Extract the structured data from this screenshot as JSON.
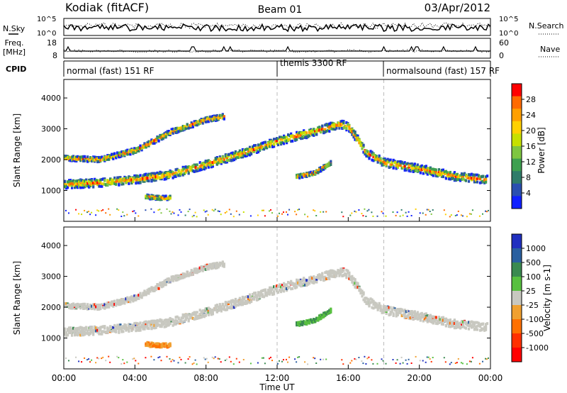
{
  "header": {
    "station": "Kodiak (fitACF)",
    "beam": "Beam 01",
    "date": "03/Apr/2012"
  },
  "left_labels": {
    "nsky": "N.Sky",
    "freq_line1": "Freq.",
    "freq_line2": "[MHz]",
    "cpid": "CPID"
  },
  "right_labels": {
    "nsearch": "N.Search",
    "nave": "Nave"
  },
  "top_panel_ticks": {
    "noise_left": [
      "10^5",
      "10^0"
    ],
    "noise_right": [
      "10^5",
      "10^0"
    ],
    "freq_left": [
      "18",
      "8"
    ],
    "nave_right": [
      "60",
      "0"
    ]
  },
  "cpid_segments": [
    {
      "label": "normal (fast) 151 RF",
      "start_h": 0
    },
    {
      "label": "themis 3300 RF",
      "start_h": 12
    },
    {
      "label": "normalsound (fast) 157 RF",
      "start_h": 18
    }
  ],
  "chart_data": [
    {
      "type": "heatmap",
      "title": "Power",
      "ylabel": "Slant Range [km]",
      "ylim": [
        0,
        4600
      ],
      "yticks": [
        1000,
        2000,
        3000,
        4000
      ],
      "xlim": [
        "00:00",
        "24:00"
      ],
      "colorbar_label": "Power [dB]",
      "colorbar_ticks": [
        28,
        24,
        20,
        16,
        12,
        8,
        4
      ],
      "colorbar_colors": [
        "#ff0000",
        "#ff6a00",
        "#ff9f00",
        "#ffd000",
        "#c6e000",
        "#7ec640",
        "#3ea050",
        "#2f7c6a",
        "#2a4fb0",
        "#1020ff"
      ],
      "echo_bands": [
        {
          "name": "main",
          "points": [
            [
              0.0,
              1200
            ],
            [
              2.0,
              1250
            ],
            [
              4.0,
              1350
            ],
            [
              6.0,
              1520
            ],
            [
              8.0,
              1850
            ],
            [
              10.0,
              2200
            ],
            [
              12.0,
              2600
            ],
            [
              14.0,
              2900
            ],
            [
              15.5,
              3150
            ],
            [
              16.0,
              3050
            ],
            [
              17.0,
              2200
            ],
            [
              18.0,
              1900
            ],
            [
              20.0,
              1700
            ],
            [
              22.0,
              1450
            ],
            [
              23.8,
              1350
            ]
          ]
        },
        {
          "name": "upper",
          "points": [
            [
              0.0,
              2050
            ],
            [
              2.0,
              2000
            ],
            [
              4.0,
              2300
            ],
            [
              6.0,
              2900
            ],
            [
              8.0,
              3300
            ],
            [
              9.0,
              3400
            ]
          ]
        },
        {
          "name": "blob_13_15",
          "points": [
            [
              13.0,
              1450
            ],
            [
              14.0,
              1550
            ],
            [
              15.0,
              1900
            ]
          ]
        },
        {
          "name": "blob_05_06",
          "points": [
            [
              4.5,
              800
            ],
            [
              5.5,
              750
            ],
            [
              6.0,
              780
            ]
          ]
        }
      ]
    },
    {
      "type": "heatmap",
      "title": "Velocity",
      "ylabel": "Slant Range [km]",
      "xlabel": "Time UT",
      "ylim": [
        0,
        4600
      ],
      "yticks": [
        1000,
        2000,
        3000,
        4000
      ],
      "xticks": [
        "00:00",
        "04:00",
        "08:00",
        "12:00",
        "16:00",
        "20:00",
        "00:00"
      ],
      "colorbar_label": "Velocity [m s-1]",
      "colorbar_ticks": [
        1000,
        500,
        100,
        25,
        -25,
        -100,
        -500,
        -1000
      ],
      "colorbar_colors": [
        "#2030c0",
        "#2a60a0",
        "#3a8a50",
        "#58c040",
        "#c8c8c0",
        "#f0a030",
        "#ff7000",
        "#ff3000",
        "#ff0000"
      ]
    }
  ]
}
